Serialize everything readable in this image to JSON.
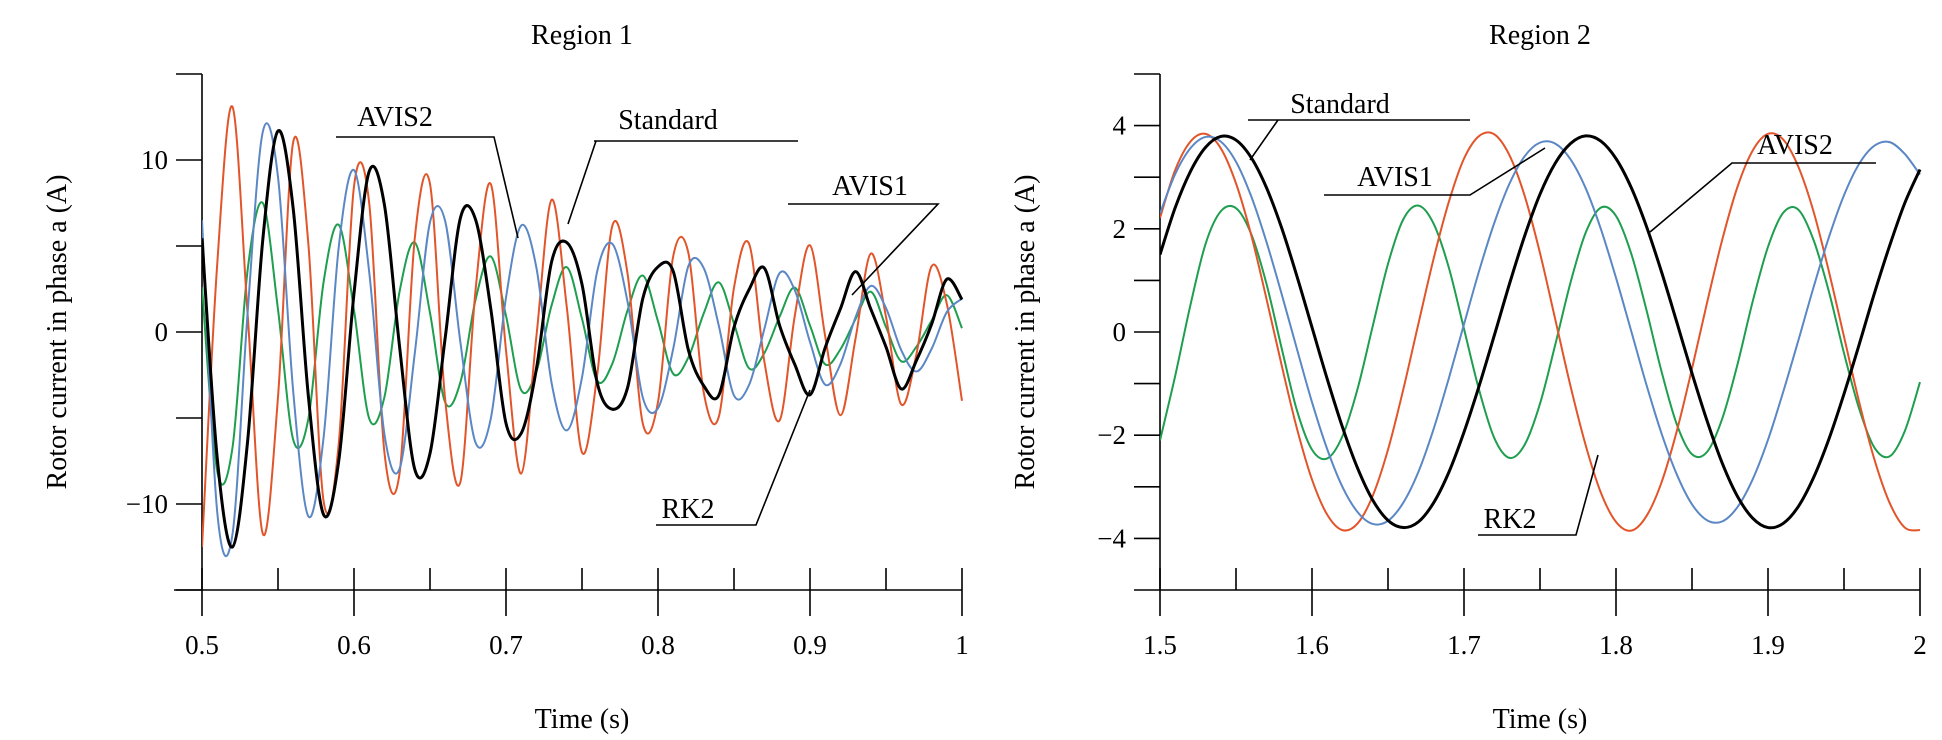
{
  "chart_data": [
    {
      "type": "line",
      "title": "Region 1",
      "xlabel": "Time (s)",
      "ylabel": "Rotor current in phase a (A)",
      "xlim": [
        0.5,
        1.0
      ],
      "ylim": [
        -15,
        15
      ],
      "x_ticks": [
        0.5,
        0.6,
        0.7,
        0.8,
        0.9,
        1.0
      ],
      "x_tick_labels": [
        "0.5",
        "0.6",
        "0.7",
        "0.8",
        "0.9",
        "1"
      ],
      "y_ticks": [
        -10,
        0,
        10
      ],
      "y_tick_labels": [
        "−10",
        "0",
        "10"
      ],
      "grid": false,
      "series": [
        {
          "name": "Standard",
          "color": "#000000",
          "x": [
            0.5,
            0.51,
            0.52,
            0.53,
            0.54,
            0.55,
            0.56,
            0.57,
            0.58,
            0.59,
            0.6,
            0.61,
            0.62,
            0.63,
            0.64,
            0.65,
            0.66,
            0.67,
            0.68,
            0.69,
            0.7,
            0.71,
            0.72,
            0.73,
            0.74,
            0.75,
            0.76,
            0.77,
            0.78,
            0.79,
            0.8,
            0.81,
            0.82,
            0.83,
            0.84,
            0.85,
            0.86,
            0.87,
            0.88,
            0.89,
            0.9,
            0.91,
            0.92,
            0.93,
            0.94,
            0.95,
            0.96,
            0.97,
            0.98,
            0.99,
            1.0
          ],
          "y": [
            5.45,
            -7.31,
            -12.5,
            -6.36,
            5.37,
            11.69,
            7.17,
            -3.75,
            -10.62,
            -7.47,
            2.24,
            9.34,
            7.4,
            -0.87,
            -7.99,
            -7.06,
            -0.34,
            6.63,
            6.53,
            1.34,
            -5.31,
            -5.89,
            -2.15,
            4.08,
            5.2,
            2.77,
            -2.95,
            -4.49,
            -3.23,
            1.95,
            3.79,
            3.53,
            -1.05,
            -3.11,
            -3.68,
            0.27,
            2.48,
            3.71,
            0.38,
            -1.89,
            -3.65,
            -0.91,
            1.35,
            3.51,
            1.33,
            -0.87,
            -3.31,
            -1.66,
            0.45,
            3.07,
            1.89
          ]
        },
        {
          "name": "AVIS1",
          "color": "#e2552a",
          "x": [
            0.5,
            0.51,
            0.52,
            0.53,
            0.54,
            0.55,
            0.56,
            0.57,
            0.58,
            0.59,
            0.6,
            0.61,
            0.62,
            0.63,
            0.64,
            0.65,
            0.66,
            0.67,
            0.68,
            0.69,
            0.7,
            0.71,
            0.72,
            0.73,
            0.74,
            0.75,
            0.76,
            0.77,
            0.78,
            0.79,
            0.8,
            0.81,
            0.82,
            0.83,
            0.84,
            0.85,
            0.86,
            0.87,
            0.88,
            0.89,
            0.9,
            0.91,
            0.92,
            0.93,
            0.94,
            0.95,
            0.96,
            0.97,
            0.98,
            0.99,
            1.0
          ],
          "y": [
            -12.5,
            3.93,
            13.1,
            1.07,
            -11.73,
            -3.78,
            11.04,
            5.09,
            -9.84,
            -6.46,
            8.47,
            7.49,
            -6.99,
            -8.2,
            5.47,
            8.61,
            -3.95,
            -8.72,
            2.47,
            8.6,
            -1.06,
            -8.23,
            -0.25,
            7.69,
            1.44,
            -7.0,
            -2.49,
            6.19,
            3.37,
            -5.32,
            -4.07,
            4.4,
            4.59,
            -3.48,
            -4.93,
            2.58,
            5.11,
            -1.73,
            -5.14,
            0.95,
            5.04,
            -0.25,
            -4.84,
            -0.36,
            4.56,
            0.88,
            -4.21,
            -1.3,
            3.82,
            1.64,
            -4.0
          ]
        },
        {
          "name": "AVIS2",
          "color": "#5b87c5",
          "x": [
            0.5,
            0.51,
            0.52,
            0.53,
            0.54,
            0.55,
            0.56,
            0.57,
            0.58,
            0.59,
            0.6,
            0.61,
            0.62,
            0.63,
            0.64,
            0.65,
            0.66,
            0.67,
            0.68,
            0.69,
            0.7,
            0.71,
            0.72,
            0.73,
            0.74,
            0.75,
            0.76,
            0.77,
            0.78,
            0.79,
            0.8,
            0.81,
            0.82,
            0.83,
            0.84,
            0.85,
            0.86,
            0.87,
            0.88,
            0.89,
            0.9,
            0.91,
            0.92,
            0.93,
            0.94,
            0.95,
            0.96,
            0.97,
            0.98,
            0.99,
            1.0
          ],
          "y": [
            6.5,
            -10.45,
            -11.79,
            1.11,
            11.64,
            9.01,
            -3.45,
            -10.72,
            -6.13,
            4.97,
            9.41,
            3.49,
            -5.93,
            -7.95,
            -1.23,
            6.38,
            6.44,
            -0.6,
            -6.44,
            -5.03,
            2.0,
            6.19,
            3.74,
            -2.96,
            -5.72,
            -2.64,
            3.53,
            5.12,
            1.74,
            -3.81,
            -4.43,
            -0.98,
            3.84,
            3.73,
            0.37,
            -3.69,
            -3.06,
            0.19,
            3.42,
            2.43,
            -0.58,
            -3.06,
            -1.87,
            0.87,
            2.68,
            1.39,
            -1.05,
            -2.3,
            -0.98,
            1.16,
            1.94
          ]
        },
        {
          "name": "RK2",
          "color": "#1e9e4e",
          "x": [
            0.5,
            0.51,
            0.52,
            0.53,
            0.54,
            0.55,
            0.56,
            0.57,
            0.58,
            0.59,
            0.6,
            0.61,
            0.62,
            0.63,
            0.64,
            0.65,
            0.66,
            0.67,
            0.68,
            0.69,
            0.7,
            0.71,
            0.72,
            0.73,
            0.74,
            0.75,
            0.76,
            0.77,
            0.78,
            0.79,
            0.8,
            0.81,
            0.82,
            0.83,
            0.84,
            0.85,
            0.86,
            0.87,
            0.88,
            0.89,
            0.9,
            0.91,
            0.92,
            0.93,
            0.94,
            0.95,
            0.96,
            0.97,
            0.98,
            0.99,
            1.0
          ],
          "y": [
            2.6,
            -8.09,
            -6.76,
            3.59,
            7.5,
            1.31,
            -6.26,
            -5.03,
            2.91,
            6.23,
            1.27,
            -5.03,
            -3.79,
            2.36,
            5.2,
            1.11,
            -4.09,
            -2.92,
            1.89,
            4.39,
            0.94,
            -3.38,
            -2.3,
            1.55,
            3.77,
            0.77,
            -2.84,
            -1.83,
            1.27,
            3.28,
            0.62,
            -2.43,
            -1.48,
            1.06,
            2.89,
            0.49,
            -2.12,
            -1.22,
            0.89,
            2.58,
            0.38,
            -1.88,
            -1.01,
            0.76,
            2.34,
            0.29,
            -1.7,
            -0.86,
            0.66,
            2.14,
            0.22
          ]
        }
      ],
      "annotations": [
        {
          "text": "AVIS2"
        },
        {
          "text": "Standard"
        },
        {
          "text": "AVIS1"
        },
        {
          "text": "RK2"
        }
      ]
    },
    {
      "type": "line",
      "title": "Region 2",
      "xlabel": "Time (s)",
      "ylabel": "Rotor current in phase a (A)",
      "xlim": [
        1.5,
        2.0
      ],
      "ylim": [
        -5,
        5
      ],
      "x_ticks": [
        1.5,
        1.6,
        1.7,
        1.8,
        1.9,
        2.0
      ],
      "x_tick_labels": [
        "1.5",
        "1.6",
        "1.7",
        "1.8",
        "1.9",
        "2"
      ],
      "y_ticks": [
        -4,
        -2,
        0,
        2,
        4
      ],
      "y_tick_labels": [
        "−4",
        "−2",
        "0",
        "2",
        "4"
      ],
      "grid": false,
      "series": [
        {
          "name": "Standard",
          "color": "#000000",
          "x": [
            1.5,
            1.51,
            1.52,
            1.53,
            1.54,
            1.55,
            1.56,
            1.57,
            1.58,
            1.59,
            1.6,
            1.61,
            1.62,
            1.63,
            1.64,
            1.65,
            1.66,
            1.67,
            1.68,
            1.69,
            1.7,
            1.71,
            1.72,
            1.73,
            1.74,
            1.75,
            1.76,
            1.77,
            1.78,
            1.79,
            1.8,
            1.81,
            1.82,
            1.83,
            1.84,
            1.85,
            1.86,
            1.87,
            1.88,
            1.89,
            1.9,
            1.91,
            1.92,
            1.93,
            1.94,
            1.95,
            1.96,
            1.97,
            1.98,
            1.99,
            2.0
          ],
          "y": [
            1.5,
            2.41,
            3.11,
            3.58,
            3.79,
            3.72,
            3.38,
            2.8,
            2.02,
            1.09,
            0.09,
            -0.91,
            -1.84,
            -2.64,
            -3.26,
            -3.65,
            -3.79,
            -3.68,
            -3.31,
            -2.72,
            -1.94,
            -1.04,
            -0.06,
            0.94,
            1.87,
            2.67,
            3.27,
            3.65,
            3.8,
            3.7,
            3.36,
            2.8,
            2.05,
            1.16,
            0.19,
            -0.8,
            -1.73,
            -2.55,
            -3.19,
            -3.61,
            -3.79,
            -3.71,
            -3.38,
            -2.82,
            -2.08,
            -1.2,
            -0.24,
            0.75,
            1.67,
            2.5,
            3.15
          ]
        },
        {
          "name": "AVIS1",
          "color": "#e2552a",
          "x": [
            1.5,
            1.51,
            1.52,
            1.53,
            1.54,
            1.55,
            1.56,
            1.57,
            1.58,
            1.59,
            1.6,
            1.61,
            1.62,
            1.63,
            1.64,
            1.65,
            1.66,
            1.67,
            1.68,
            1.69,
            1.7,
            1.71,
            1.72,
            1.73,
            1.74,
            1.75,
            1.76,
            1.77,
            1.78,
            1.79,
            1.8,
            1.81,
            1.82,
            1.83,
            1.84,
            1.85,
            1.86,
            1.87,
            1.88,
            1.89,
            1.9,
            1.91,
            1.92,
            1.93,
            1.94,
            1.95,
            1.96,
            1.97,
            1.98,
            1.99,
            2.0
          ],
          "y": [
            2.21,
            3.14,
            3.69,
            3.84,
            3.56,
            2.88,
            1.88,
            0.65,
            -0.64,
            -1.86,
            -2.86,
            -3.54,
            -3.84,
            -3.71,
            -3.17,
            -2.28,
            -1.12,
            0.16,
            1.42,
            2.52,
            3.36,
            3.8,
            3.83,
            3.42,
            2.63,
            1.53,
            0.25,
            -1.04,
            -2.19,
            -3.11,
            -3.68,
            -3.85,
            -3.57,
            -2.91,
            -1.92,
            -0.71,
            0.58,
            1.8,
            2.82,
            3.52,
            3.84,
            3.73,
            3.2,
            2.33,
            1.18,
            -0.09,
            -1.36,
            -2.47,
            -3.31,
            -3.79,
            -3.84
          ]
        },
        {
          "name": "AVIS2",
          "color": "#5b87c5",
          "x": [
            1.5,
            1.51,
            1.52,
            1.53,
            1.54,
            1.55,
            1.56,
            1.57,
            1.58,
            1.59,
            1.6,
            1.61,
            1.62,
            1.63,
            1.64,
            1.65,
            1.66,
            1.67,
            1.68,
            1.69,
            1.7,
            1.71,
            1.72,
            1.73,
            1.74,
            1.75,
            1.76,
            1.77,
            1.78,
            1.79,
            1.8,
            1.81,
            1.82,
            1.83,
            1.84,
            1.85,
            1.86,
            1.87,
            1.88,
            1.89,
            1.9,
            1.91,
            1.92,
            1.93,
            1.94,
            1.95,
            1.96,
            1.97,
            1.98,
            1.99,
            2.0
          ],
          "y": [
            2.3,
            3.06,
            3.56,
            3.78,
            3.69,
            3.3,
            2.63,
            1.75,
            0.74,
            -0.32,
            -1.36,
            -2.27,
            -3.0,
            -3.49,
            -3.72,
            -3.66,
            -3.31,
            -2.71,
            -1.88,
            -0.9,
            0.15,
            1.19,
            2.12,
            2.88,
            3.41,
            3.67,
            3.65,
            3.35,
            2.79,
            2.0,
            1.05,
            0.02,
            -1.02,
            -1.97,
            -2.76,
            -3.34,
            -3.65,
            -3.67,
            -3.39,
            -2.85,
            -2.09,
            -1.16,
            -0.16,
            0.87,
            1.83,
            2.65,
            3.26,
            3.61,
            3.68,
            3.45,
            3.05
          ]
        },
        {
          "name": "RK2",
          "color": "#1e9e4e",
          "x": [
            1.5,
            1.51,
            1.52,
            1.53,
            1.54,
            1.55,
            1.56,
            1.57,
            1.58,
            1.59,
            1.6,
            1.61,
            1.62,
            1.63,
            1.64,
            1.65,
            1.66,
            1.67,
            1.68,
            1.69,
            1.7,
            1.71,
            1.72,
            1.73,
            1.74,
            1.75,
            1.76,
            1.77,
            1.78,
            1.79,
            1.8,
            1.81,
            1.82,
            1.83,
            1.84,
            1.85,
            1.86,
            1.87,
            1.88,
            1.89,
            1.9,
            1.91,
            1.92,
            1.93,
            1.94,
            1.95,
            1.96,
            1.97,
            1.98,
            1.99,
            2.0
          ],
          "y": [
            -2.1,
            -0.85,
            0.52,
            1.71,
            2.34,
            2.4,
            1.9,
            0.94,
            -0.31,
            -1.51,
            -2.28,
            -2.45,
            -2.02,
            -1.1,
            0.12,
            1.32,
            2.18,
            2.45,
            2.1,
            1.25,
            0.06,
            -1.13,
            -2.06,
            -2.44,
            -2.18,
            -1.39,
            -0.25,
            0.95,
            1.92,
            2.41,
            2.25,
            1.52,
            0.43,
            -0.77,
            -1.79,
            -2.37,
            -2.32,
            -1.67,
            -0.62,
            0.6,
            1.65,
            2.31,
            2.37,
            1.78,
            0.79,
            -0.41,
            -1.49,
            -2.24,
            -2.41,
            -1.92,
            -0.97
          ]
        }
      ],
      "annotations": [
        {
          "text": "Standard"
        },
        {
          "text": "AVIS1"
        },
        {
          "text": "AVIS2"
        },
        {
          "text": "RK2"
        }
      ]
    }
  ]
}
